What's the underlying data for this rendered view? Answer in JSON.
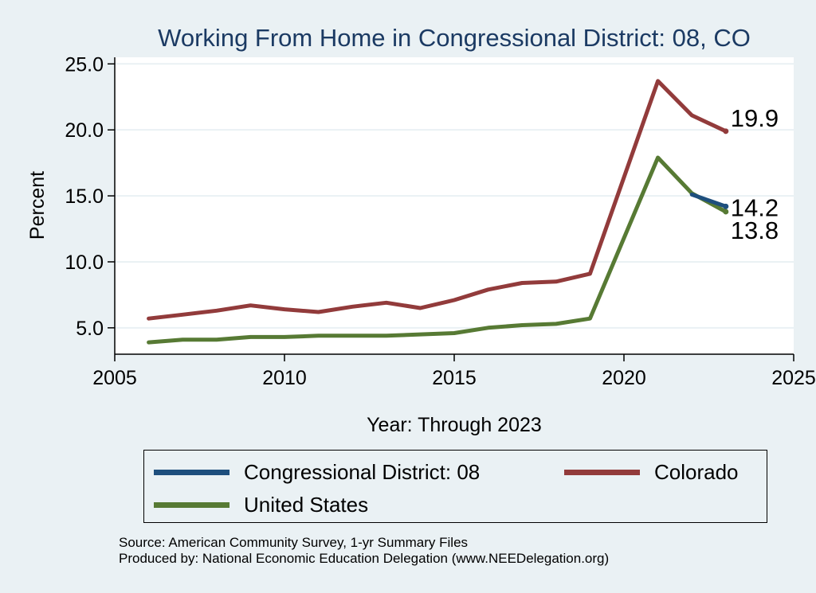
{
  "chart_data": {
    "type": "line",
    "title": "Working From Home in Congressional District: 08, CO",
    "xlabel": "Year: Through 2023",
    "ylabel": "Percent",
    "xlim": [
      2005,
      2025
    ],
    "ylim": [
      3.0,
      25.5
    ],
    "xticks": [
      2005,
      2010,
      2015,
      2020,
      2025
    ],
    "yticks": [
      5.0,
      10.0,
      15.0,
      20.0,
      25.0
    ],
    "xtick_labels": [
      "2005",
      "2010",
      "2015",
      "2020",
      "2025"
    ],
    "ytick_labels": [
      "5.0",
      "10.0",
      "15.0",
      "20.0",
      "25.0"
    ],
    "grid": "horizontal",
    "legend_position": "bottom",
    "series": [
      {
        "name": "Congressional District: 08",
        "color": "#1e4f7d",
        "x": [
          2022,
          2023
        ],
        "y": [
          15.1,
          14.2
        ],
        "end_label": "14.2"
      },
      {
        "name": "Colorado",
        "color": "#923b3b",
        "x": [
          2006,
          2007,
          2008,
          2009,
          2010,
          2011,
          2012,
          2013,
          2014,
          2015,
          2016,
          2017,
          2018,
          2019,
          2021,
          2022,
          2023
        ],
        "y": [
          5.7,
          6.0,
          6.3,
          6.7,
          6.4,
          6.2,
          6.6,
          6.9,
          6.5,
          7.1,
          7.9,
          8.4,
          8.5,
          9.1,
          23.7,
          21.1,
          19.9
        ],
        "end_label": "19.9"
      },
      {
        "name": "United States",
        "color": "#577a34",
        "x": [
          2006,
          2007,
          2008,
          2009,
          2010,
          2011,
          2012,
          2013,
          2014,
          2015,
          2016,
          2017,
          2018,
          2019,
          2021,
          2022,
          2023
        ],
        "y": [
          3.9,
          4.1,
          4.1,
          4.3,
          4.3,
          4.4,
          4.4,
          4.4,
          4.5,
          4.6,
          5.0,
          5.2,
          5.3,
          5.7,
          17.9,
          15.2,
          13.8
        ],
        "end_label": "13.8"
      }
    ]
  },
  "legend": {
    "items": [
      {
        "label": "Congressional District: 08",
        "color": "#1e4f7d"
      },
      {
        "label": "Colorado",
        "color": "#923b3b"
      },
      {
        "label": "United States",
        "color": "#577a34"
      }
    ]
  },
  "notes": {
    "source": "Source: American Community Survey, 1-yr Summary Files",
    "produced_by": "Produced by: National Economic Education Delegation (www.NEEDelegation.org)"
  }
}
